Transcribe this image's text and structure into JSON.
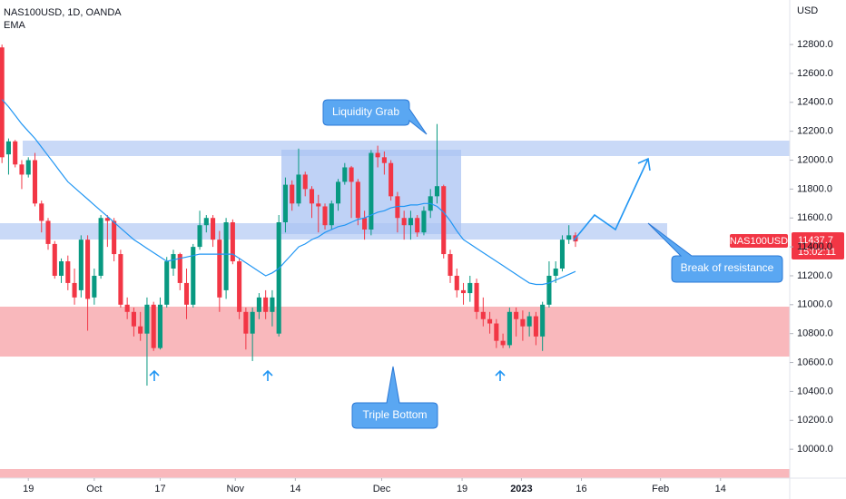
{
  "chart_data": {
    "type": "candlestick",
    "title": "NAS100USD, 1D, OANDA",
    "indicator": "EMA",
    "currency": "USD",
    "symbol_tag": "NAS100USD",
    "countdown": "15:02:11",
    "annotations": [
      "Liquidity Grab",
      "Triple Bottom",
      "Break of resistance"
    ],
    "up_color": "#089981",
    "down_color": "#f23645",
    "x": [
      0,
      1,
      2,
      3,
      4,
      5,
      6,
      7,
      8,
      9,
      10,
      11,
      12,
      13,
      14,
      15,
      16,
      17,
      18,
      19,
      20,
      21,
      22,
      23,
      24,
      25,
      26,
      27,
      28,
      29,
      30,
      31,
      32,
      33,
      34,
      35,
      36,
      37,
      38,
      39,
      40,
      41,
      42,
      43,
      44,
      45,
      46,
      47,
      48,
      49,
      50,
      51,
      52,
      53,
      54,
      55,
      56,
      57,
      58,
      59,
      60,
      61,
      62,
      63,
      64,
      65,
      66,
      67,
      68,
      69,
      70,
      71,
      72,
      73,
      74,
      75,
      76,
      77,
      78,
      79,
      80,
      81,
      82,
      83,
      84,
      85,
      86,
      87
    ],
    "open": [
      12780,
      12040,
      12130,
      11970,
      11900,
      12000,
      11700,
      11580,
      11420,
      11200,
      11300,
      11150,
      11100,
      11450,
      11050,
      11200,
      11600,
      11580,
      11350,
      11000,
      10950,
      10850,
      10800,
      11000,
      10700,
      11000,
      11250,
      11350,
      11150,
      11000,
      11400,
      11550,
      11600,
      11450,
      11100,
      11570,
      11300,
      10950,
      10800,
      10950,
      11050,
      10950,
      10800,
      11570,
      11830,
      11700,
      11900,
      11800,
      11700,
      11680,
      11550,
      11700,
      11850,
      11950,
      11850,
      11600,
      11520,
      12050,
      12020,
      11980,
      11750,
      11600,
      11550,
      11600,
      11500,
      11650,
      11750,
      11820,
      11350,
      11200,
      11100,
      11080,
      11150,
      10950,
      10900,
      10870,
      10750,
      10720,
      10950,
      10900,
      10850,
      10920,
      10780,
      11000,
      11200,
      11250,
      11450,
      11480
    ],
    "high": [
      12800,
      12150,
      12140,
      12000,
      12020,
      12050,
      11720,
      11600,
      11440,
      11320,
      11340,
      11250,
      11480,
      11480,
      11250,
      11620,
      11620,
      11600,
      11380,
      11050,
      10980,
      10950,
      11050,
      11020,
      11050,
      11330,
      11380,
      11360,
      11250,
      11420,
      11650,
      11620,
      11620,
      11510,
      11600,
      11590,
      11320,
      10980,
      10980,
      11080,
      11100,
      11100,
      11620,
      11880,
      11860,
      12080,
      11920,
      11820,
      11760,
      11700,
      11720,
      11870,
      11980,
      11960,
      11870,
      11650,
      12070,
      12100,
      12060,
      12000,
      11780,
      11650,
      11650,
      11620,
      11680,
      11800,
      12250,
      11830,
      11380,
      11250,
      11150,
      11200,
      11180,
      11050,
      10950,
      10900,
      10800,
      10980,
      10980,
      10960,
      10950,
      10950,
      11020,
      11300,
      11300,
      11480,
      11550,
      11500
    ],
    "low": [
      11980,
      11900,
      11950,
      11800,
      11880,
      11680,
      11500,
      11380,
      11180,
      11150,
      11100,
      11000,
      11050,
      10820,
      11000,
      11180,
      11400,
      11300,
      10980,
      10900,
      10780,
      10750,
      10440,
      10680,
      10690,
      10980,
      11200,
      11100,
      10900,
      10980,
      11380,
      11500,
      11400,
      10950,
      11040,
      11280,
      10900,
      10690,
      10610,
      10900,
      10900,
      10850,
      10780,
      11500,
      11650,
      11680,
      11750,
      11600,
      11500,
      11520,
      11520,
      11650,
      11830,
      11600,
      11550,
      11450,
      11480,
      11950,
      11900,
      11720,
      11500,
      11450,
      11450,
      11470,
      11480,
      11600,
      11700,
      11320,
      11150,
      11050,
      11000,
      11020,
      10900,
      10850,
      10800,
      10700,
      10700,
      10700,
      10780,
      10750,
      10780,
      10720,
      10680,
      10980,
      11150,
      11230,
      11420,
      11400
    ],
    "close": [
      12020,
      12130,
      11970,
      11900,
      12000,
      11700,
      11580,
      11420,
      11200,
      11300,
      11150,
      11050,
      11450,
      11040,
      11200,
      11600,
      11580,
      11350,
      11000,
      10950,
      10850,
      10800,
      11000,
      10700,
      11000,
      11300,
      11350,
      11150,
      11000,
      11400,
      11550,
      11600,
      11450,
      11050,
      11570,
      11300,
      10950,
      10800,
      10950,
      11050,
      10950,
      11050,
      11570,
      11830,
      11700,
      11900,
      11800,
      11700,
      11680,
      11550,
      11700,
      11850,
      11950,
      11850,
      11600,
      11520,
      12050,
      12020,
      11980,
      11750,
      11600,
      11550,
      11600,
      11500,
      11650,
      11750,
      11820,
      11350,
      11200,
      11100,
      11080,
      11150,
      10950,
      10900,
      10870,
      10750,
      10720,
      10950,
      10900,
      10850,
      10920,
      10780,
      11000,
      11200,
      11250,
      11450,
      11480,
      11437.7
    ],
    "ema": {
      "name": "EMA",
      "color": "#2196f3",
      "values": [
        12420,
        12370,
        12310,
        12250,
        12200,
        12150,
        12090,
        12030,
        11970,
        11910,
        11850,
        11810,
        11770,
        11730,
        11690,
        11650,
        11610,
        11570,
        11530,
        11490,
        11450,
        11420,
        11390,
        11360,
        11330,
        11300,
        11310,
        11320,
        11330,
        11340,
        11350,
        11350,
        11350,
        11350,
        11350,
        11350,
        11320,
        11290,
        11260,
        11230,
        11200,
        11220,
        11250,
        11300,
        11350,
        11400,
        11420,
        11450,
        11470,
        11500,
        11520,
        11540,
        11550,
        11570,
        11590,
        11600,
        11620,
        11640,
        11650,
        11670,
        11680,
        11680,
        11690,
        11690,
        11700,
        11700,
        11680,
        11640,
        11580,
        11510,
        11450,
        11420,
        11390,
        11360,
        11330,
        11300,
        11270,
        11240,
        11210,
        11180,
        11150,
        11140,
        11140,
        11150,
        11170,
        11190,
        11210,
        11230
      ]
    },
    "xlim": [
      -0.3,
      119.5
    ],
    "ylim": [
      9800,
      13108
    ],
    "xticks": [
      {
        "value": 4,
        "label": "19"
      },
      {
        "value": 14,
        "label": "Oct"
      },
      {
        "value": 24,
        "label": "17"
      },
      {
        "value": 35.4,
        "label": "Nov"
      },
      {
        "value": 44.5,
        "label": "14"
      },
      {
        "value": 57.6,
        "label": "Dec"
      },
      {
        "value": 69.8,
        "label": "19"
      },
      {
        "value": 78.8,
        "label": "2023"
      },
      {
        "value": 87.9,
        "label": "16"
      },
      {
        "value": 99.9,
        "label": "Feb"
      },
      {
        "value": 109,
        "label": "14"
      }
    ],
    "yticks": [
      {
        "value": 10000,
        "label": "10000.0"
      },
      {
        "value": 10200,
        "label": "10200.0"
      },
      {
        "value": 10400,
        "label": "10400.0"
      },
      {
        "value": 10600,
        "label": "10600.0"
      },
      {
        "value": 10800,
        "label": "10800.0"
      },
      {
        "value": 11000,
        "label": "11000.0"
      },
      {
        "value": 11200,
        "label": "11200.0"
      },
      {
        "value": 11400,
        "label": "11400.0"
      },
      {
        "value": 11600,
        "label": "11600.0"
      },
      {
        "value": 11800,
        "label": "11800.0"
      },
      {
        "value": 12000,
        "label": "12000.0"
      },
      {
        "value": 12200,
        "label": "12200.0"
      },
      {
        "value": 12400,
        "label": "12400.0"
      },
      {
        "value": 12600,
        "label": "12600.0"
      },
      {
        "value": 12800,
        "label": "12800.0"
      }
    ]
  }
}
